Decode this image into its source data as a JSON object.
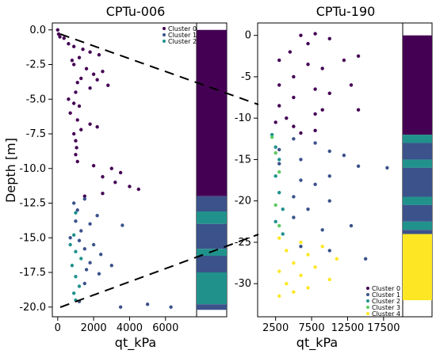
{
  "chart_data": [
    {
      "type": "scatter",
      "title": "CPTu-006",
      "xlabel": "qt_kPa",
      "ylabel": "Depth [m]",
      "xlim": [
        -300,
        7200
      ],
      "ylim": [
        0.5,
        -20.7
      ],
      "xticks": [
        0,
        2000,
        4000,
        6000
      ],
      "xtick_labels": [
        "0",
        "2000",
        "4000",
        "6000"
      ],
      "yticks": [
        0,
        -2.5,
        -5,
        -7.5,
        -10,
        -12.5,
        -15,
        -17.5,
        -20
      ],
      "ytick_labels": [
        "0.0",
        "-2.5",
        "-5.0",
        "-7.5",
        "-10.0",
        "-12.5",
        "-15.0",
        "-17.5",
        "-20.0"
      ],
      "legend": {
        "placement": "top-right",
        "entries": [
          "Cluster 0",
          "Cluster 1",
          "Cluster 2"
        ]
      },
      "series": [
        {
          "name": "Cluster 0",
          "color": "#440154",
          "points": [
            [
              0,
              0
            ],
            [
              50,
              -0.3
            ],
            [
              120,
              -0.5
            ],
            [
              350,
              -0.6
            ],
            [
              600,
              -1.0
            ],
            [
              900,
              -1.2
            ],
            [
              1400,
              -1.4
            ],
            [
              1800,
              -1.6
            ],
            [
              2300,
              -1.8
            ],
            [
              1200,
              -2.0
            ],
            [
              800,
              -2.2
            ],
            [
              900,
              -2.5
            ],
            [
              1600,
              -2.8
            ],
            [
              2500,
              -3.0
            ],
            [
              2000,
              -3.2
            ],
            [
              1300,
              -3.5
            ],
            [
              1100,
              -3.8
            ],
            [
              2200,
              -3.6
            ],
            [
              2800,
              -4.0
            ],
            [
              1800,
              -4.2
            ],
            [
              1000,
              -4.5
            ],
            [
              600,
              -5.0
            ],
            [
              900,
              -5.3
            ],
            [
              1200,
              -5.5
            ],
            [
              700,
              -6.0
            ],
            [
              1100,
              -6.5
            ],
            [
              1800,
              -6.8
            ],
            [
              2200,
              -7.0
            ],
            [
              1300,
              -7.2
            ],
            [
              900,
              -7.5
            ],
            [
              1000,
              -8.0
            ],
            [
              1050,
              -8.5
            ],
            [
              1000,
              -9.0
            ],
            [
              1100,
              -9.5
            ],
            [
              2000,
              -9.8
            ],
            [
              3000,
              -10.0
            ],
            [
              3500,
              -10.3
            ],
            [
              2500,
              -10.6
            ],
            [
              3200,
              -11.0
            ],
            [
              4000,
              -11.3
            ],
            [
              4500,
              -11.5
            ],
            [
              2500,
              -11.8
            ],
            [
              1500,
              -12.0
            ]
          ]
        },
        {
          "name": "Cluster 1",
          "color": "#3b528b",
          "points": [
            [
              1500,
              -12.2
            ],
            [
              900,
              -12.5
            ],
            [
              1100,
              -13.0
            ],
            [
              2200,
              -13.4
            ],
            [
              1000,
              -13.8
            ],
            [
              1800,
              -14.0
            ],
            [
              3600,
              -14.1
            ],
            [
              1300,
              -14.5
            ],
            [
              700,
              -15.0
            ],
            [
              1200,
              -15.2
            ],
            [
              2000,
              -15.5
            ],
            [
              1500,
              -15.8
            ],
            [
              2400,
              -16.2
            ],
            [
              1800,
              -16.8
            ],
            [
              3000,
              -17.0
            ],
            [
              1600,
              -17.3
            ],
            [
              2300,
              -17.6
            ],
            [
              1500,
              -18.3
            ],
            [
              1200,
              -19.6
            ],
            [
              3500,
              -20.0
            ],
            [
              5000,
              -19.8
            ],
            [
              6300,
              -20.0
            ]
          ]
        },
        {
          "name": "Cluster 2",
          "color": "#21918c",
          "points": [
            [
              1000,
              -13.2
            ],
            [
              900,
              -14.8
            ],
            [
              700,
              -15.5
            ],
            [
              1000,
              -16.0
            ],
            [
              1300,
              -16.5
            ],
            [
              800,
              -17.0
            ],
            [
              1000,
              -17.8
            ],
            [
              1200,
              -18.5
            ],
            [
              900,
              -19.0
            ],
            [
              1000,
              -19.5
            ]
          ]
        }
      ],
      "cluster_bar": [
        {
          "from": 0,
          "to": -12.0,
          "cluster": "Cluster 0"
        },
        {
          "from": -12.0,
          "to": -13.1,
          "cluster": "Cluster 1"
        },
        {
          "from": -13.1,
          "to": -14.0,
          "cluster": "Cluster 2"
        },
        {
          "from": -14.0,
          "to": -15.8,
          "cluster": "Cluster 1"
        },
        {
          "from": -15.8,
          "to": -16.3,
          "cluster": "Cluster 2"
        },
        {
          "from": -16.3,
          "to": -17.5,
          "cluster": "Cluster 1"
        },
        {
          "from": -17.5,
          "to": -19.8,
          "cluster": "Cluster 2"
        },
        {
          "from": -19.8,
          "to": -20.2,
          "cluster": "Cluster 1"
        }
      ]
    },
    {
      "type": "scatter",
      "title": "CPTu-190",
      "xlabel": "qt_kPa",
      "ylabel": "",
      "xlim": [
        0,
        19500
      ],
      "ylim": [
        1.5,
        -34
      ],
      "xticks": [
        2500,
        7500,
        12500,
        17500
      ],
      "xtick_labels": [
        "2500",
        "7500",
        "12500",
        "17500"
      ],
      "yticks": [
        0,
        -5,
        -10,
        -15,
        -20,
        -25,
        -30
      ],
      "ytick_labels": [
        "0",
        "-5",
        "-10",
        "-15",
        "-20",
        "-25",
        "-30"
      ],
      "legend": {
        "placement": "bottom-right",
        "entries": [
          "Cluster 0",
          "Cluster 1",
          "Cluster 2",
          "Cluster 3",
          "Cluster 4"
        ]
      },
      "series": [
        {
          "name": "Cluster 0",
          "color": "#440154",
          "points": [
            [
              6000,
              0
            ],
            [
              8000,
              0.2
            ],
            [
              10000,
              -0.4
            ],
            [
              7000,
              -1.0
            ],
            [
              4500,
              -2.0
            ],
            [
              3000,
              -3.0
            ],
            [
              7000,
              -3.5
            ],
            [
              12000,
              -3.0
            ],
            [
              14000,
              -2.5
            ],
            [
              9000,
              -4.0
            ],
            [
              5000,
              -5.0
            ],
            [
              3000,
              -6.0
            ],
            [
              8000,
              -6.5
            ],
            [
              13000,
              -6.0
            ],
            [
              10000,
              -7.0
            ],
            [
              5000,
              -7.5
            ],
            [
              3000,
              -8.5
            ],
            [
              9000,
              -9.0
            ],
            [
              14000,
              -9.0
            ],
            [
              8000,
              -9.5
            ],
            [
              4000,
              -10.0
            ],
            [
              2500,
              -10.5
            ],
            [
              5000,
              -11.0
            ],
            [
              8000,
              -11.5
            ],
            [
              6000,
              -11.8
            ]
          ]
        },
        {
          "name": "Cluster 1",
          "color": "#3b528b",
          "points": [
            [
              5000,
              -12.5
            ],
            [
              8000,
              -13.0
            ],
            [
              3000,
              -13.8
            ],
            [
              10000,
              -14.0
            ],
            [
              12000,
              -14.5
            ],
            [
              6000,
              -15.0
            ],
            [
              3000,
              -15.5
            ],
            [
              14000,
              -15.8
            ],
            [
              18000,
              -16.0
            ],
            [
              10000,
              -17.0
            ],
            [
              6000,
              -17.5
            ],
            [
              8000,
              -18.0
            ],
            [
              5000,
              -19.5
            ],
            [
              10000,
              -20.0
            ],
            [
              7000,
              -21.0
            ],
            [
              5000,
              -22.0
            ],
            [
              9000,
              -23.5
            ],
            [
              13000,
              -23.0
            ],
            [
              6000,
              -25.5
            ],
            [
              10000,
              -26.0
            ],
            [
              15000,
              -27.0
            ]
          ]
        },
        {
          "name": "Cluster 2",
          "color": "#21918c",
          "points": [
            [
              2000,
              -12.0
            ],
            [
              2500,
              -13.5
            ],
            [
              3000,
              -15.0
            ],
            [
              2500,
              -17.0
            ],
            [
              3000,
              -19.0
            ],
            [
              3500,
              -21.0
            ],
            [
              2500,
              -22.5
            ],
            [
              3500,
              -24.0
            ]
          ]
        },
        {
          "name": "Cluster 3",
          "color": "#5ec962",
          "points": [
            [
              2000,
              -12.3
            ],
            [
              2500,
              -14.2
            ],
            [
              3000,
              -16.5
            ],
            [
              2500,
              -20.5
            ],
            [
              3000,
              -23.0
            ]
          ]
        },
        {
          "name": "Cluster 4",
          "color": "#fde725",
          "points": [
            [
              3000,
              -24.5
            ],
            [
              6000,
              -25.0
            ],
            [
              9000,
              -25.5
            ],
            [
              4000,
              -26.0
            ],
            [
              7000,
              -26.5
            ],
            [
              11000,
              -27.0
            ],
            [
              5000,
              -27.5
            ],
            [
              8000,
              -28.0
            ],
            [
              3000,
              -28.5
            ],
            [
              6000,
              -29.0
            ],
            [
              10000,
              -29.5
            ],
            [
              4000,
              -30.0
            ],
            [
              7000,
              -30.5
            ],
            [
              5000,
              -31.0
            ],
            [
              3000,
              -31.5
            ]
          ]
        }
      ],
      "cluster_bar": [
        {
          "from": 0,
          "to": -12.0,
          "cluster": "Cluster 0"
        },
        {
          "from": -12.0,
          "to": -13.0,
          "cluster": "Cluster 2"
        },
        {
          "from": -13.0,
          "to": -15.0,
          "cluster": "Cluster 1"
        },
        {
          "from": -15.0,
          "to": -16.0,
          "cluster": "Cluster 2"
        },
        {
          "from": -16.0,
          "to": -19.5,
          "cluster": "Cluster 1"
        },
        {
          "from": -19.5,
          "to": -20.5,
          "cluster": "Cluster 2"
        },
        {
          "from": -20.5,
          "to": -22.5,
          "cluster": "Cluster 1"
        },
        {
          "from": -22.5,
          "to": -23.5,
          "cluster": "Cluster 2"
        },
        {
          "from": -23.5,
          "to": -24.0,
          "cluster": "Cluster 1"
        },
        {
          "from": -24.0,
          "to": -32.0,
          "cluster": "Cluster 4"
        }
      ]
    }
  ],
  "colors": {
    "Cluster 0": "#440154",
    "Cluster 1": "#3b528b",
    "Cluster 2": "#21918c",
    "Cluster 3": "#5ec962",
    "Cluster 4": "#fde725"
  }
}
